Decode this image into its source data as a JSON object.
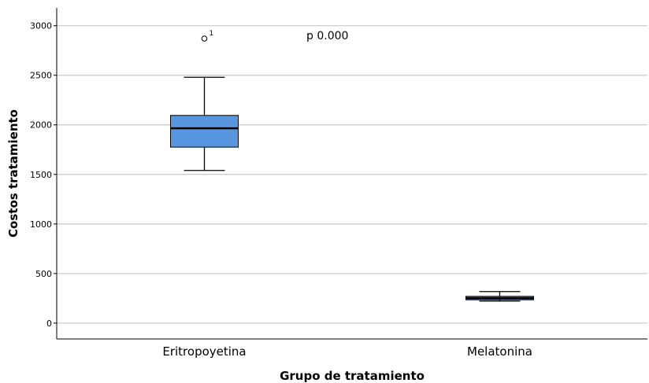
{
  "chart_data": {
    "type": "boxplot",
    "xlabel": "Grupo de tratamiento",
    "ylabel": "Costos tratamiento",
    "ylim": [
      -160,
      3180
    ],
    "yticks": [
      0,
      500,
      1000,
      1500,
      2000,
      2500,
      3000
    ],
    "grid": "horizontal",
    "box_color": "#5896E0",
    "annotation": "p 0.000",
    "categories": [
      "Eritropoyetina",
      "Melatonina"
    ],
    "boxes": [
      {
        "category": "Eritropoyetina",
        "whisker_low": 1540,
        "q1": 1775,
        "median": 1965,
        "q3": 2095,
        "whisker_high": 2480,
        "outliers": [
          {
            "value": 2870,
            "label": "1"
          }
        ]
      },
      {
        "category": "Melatonina",
        "whisker_low": 222,
        "q1": 235,
        "median": 252,
        "q3": 270,
        "whisker_high": 318,
        "outliers": []
      }
    ]
  }
}
